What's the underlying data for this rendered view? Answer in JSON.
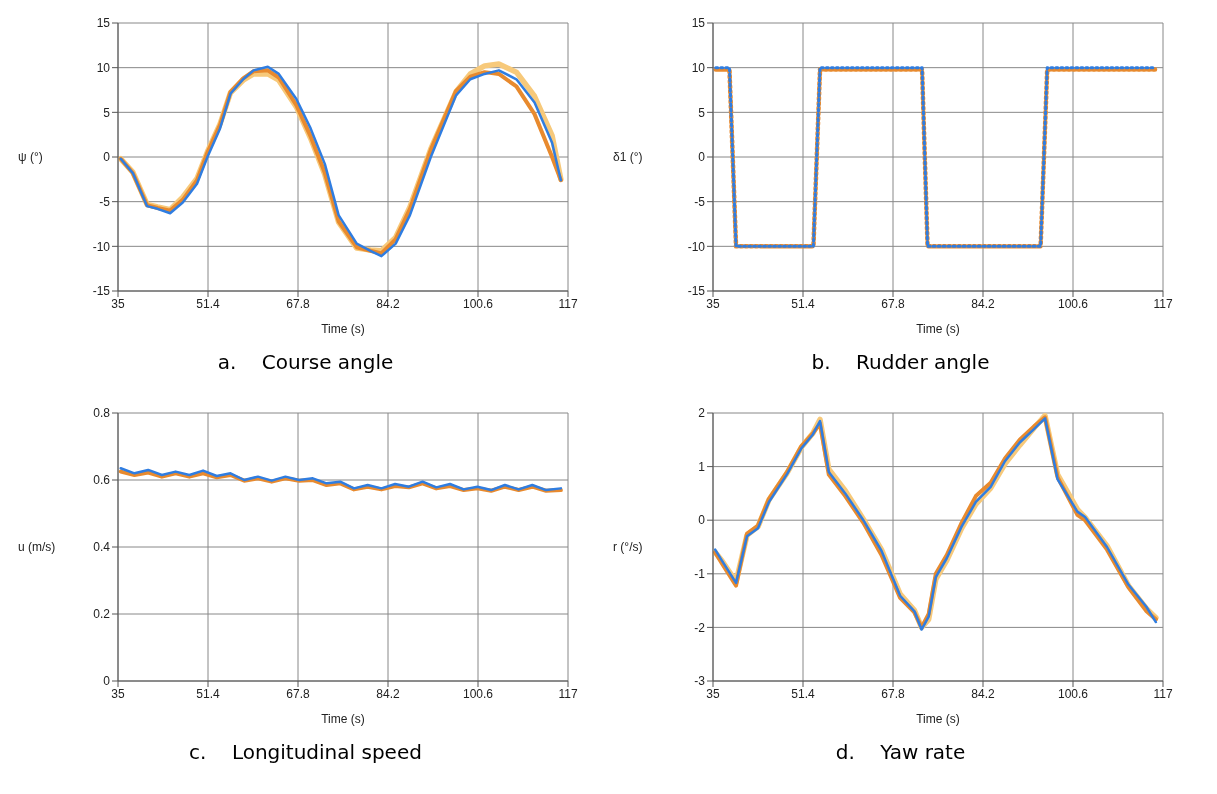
{
  "chart_data": [
    {
      "type": "line",
      "title": "a.    Course angle",
      "xlabel": "Time (s)",
      "ylabel": "ψ (°)",
      "xlim": [
        35,
        117
      ],
      "xticks": [
        35,
        51.4,
        67.8,
        84.2,
        100.6,
        117
      ],
      "ylim": [
        -15,
        15
      ],
      "yticks": [
        -15,
        -10,
        -5,
        0,
        5,
        10,
        15
      ],
      "grid": true,
      "legend": false,
      "line_style": "solid",
      "marker": "none",
      "x": [
        35.5,
        37.7,
        40.3,
        42.2,
        44.5,
        46.8,
        49.4,
        51.3,
        53.6,
        55.5,
        57.8,
        59.7,
        62.3,
        64.3,
        67.5,
        70.1,
        72.7,
        75.2,
        78.5,
        81,
        83,
        85.6,
        88.2,
        92,
        96.6,
        99.2,
        101.8,
        104.4,
        107.6,
        110.9,
        114.1,
        115.7
      ],
      "series": [
        {
          "color": "#f7c97a",
          "values": [
            -0.2,
            -1.7,
            -5.3,
            -5.6,
            -5.9,
            -4.5,
            -2.4,
            0.6,
            3.7,
            7.2,
            8.6,
            9.3,
            9.3,
            8.6,
            5.6,
            2.1,
            -2.0,
            -7.3,
            -10.2,
            -10.4,
            -10.5,
            -9.0,
            -5.6,
            0.9,
            7.3,
            9.3,
            10.2,
            10.4,
            9.5,
            6.8,
            2.4,
            -2.5
          ]
        },
        {
          "color": "#e88a2e",
          "values": [
            -0.2,
            -1.8,
            -5.4,
            -5.7,
            -6.0,
            -4.8,
            -2.6,
            0.5,
            3.6,
            7.3,
            8.8,
            9.6,
            9.7,
            8.9,
            5.8,
            2.3,
            -1.8,
            -7.2,
            -10.1,
            -10.5,
            -10.8,
            -9.2,
            -5.8,
            0.8,
            7.4,
            9.0,
            9.5,
            9.3,
            7.9,
            4.8,
            0.0,
            -2.6
          ]
        },
        {
          "color": "#2f7de1",
          "values": [
            -0.2,
            -1.8,
            -5.5,
            -5.8,
            -6.3,
            -5.1,
            -3,
            0,
            3.2,
            7.1,
            8.7,
            9.7,
            10.1,
            9.3,
            6.5,
            3.2,
            -0.8,
            -6.5,
            -9.7,
            -10.5,
            -11.1,
            -9.7,
            -6.5,
            0,
            6.9,
            8.7,
            9.3,
            9.7,
            8.7,
            6.1,
            1.6,
            -2.6
          ]
        }
      ]
    },
    {
      "type": "line",
      "title": "b.    Rudder angle",
      "xlabel": "Time (s)",
      "ylabel": "δ1 (°)",
      "xlim": [
        35,
        117
      ],
      "xticks": [
        35,
        51.4,
        67.8,
        84.2,
        100.6,
        117
      ],
      "ylim": [
        -15,
        15
      ],
      "yticks": [
        -15,
        -10,
        -5,
        0,
        5,
        10,
        15
      ],
      "grid": true,
      "legend": false,
      "line_style": "dotted",
      "marker": "none",
      "x": [
        35.5,
        38,
        39.2,
        53.3,
        54.5,
        73.1,
        74.1,
        94.7,
        95.9,
        115.7
      ],
      "series": [
        {
          "color": "#e88a2e",
          "values": [
            9.8,
            9.8,
            -10,
            -10,
            9.8,
            9.8,
            -10,
            -10,
            9.8,
            9.8
          ]
        },
        {
          "color": "#2f7de1",
          "values": [
            10,
            10,
            -10,
            -10,
            10,
            10,
            -10,
            -10,
            10,
            10
          ]
        }
      ]
    },
    {
      "type": "line",
      "title": "c.    Longitudinal speed",
      "xlabel": "Time (s)",
      "ylabel": "u (m/s)",
      "xlim": [
        35,
        117
      ],
      "xticks": [
        35,
        51.4,
        67.8,
        84.2,
        100.6,
        117
      ],
      "ylim": [
        0,
        0.8
      ],
      "yticks": [
        0,
        0.2,
        0.4,
        0.6,
        0.8
      ],
      "grid": true,
      "legend": false,
      "line_style": "solid",
      "marker": "none",
      "x": [
        35.5,
        38,
        40.5,
        43,
        45.5,
        48,
        50.5,
        53,
        55.5,
        58,
        60.5,
        63,
        65.5,
        68,
        70.5,
        73,
        75.5,
        78,
        80.5,
        83,
        85.5,
        88,
        90.5,
        93,
        95.5,
        98,
        100.5,
        103,
        105.5,
        108,
        110.5,
        113,
        115.7
      ],
      "series": [
        {
          "color": "#e88a2e",
          "values": [
            0.625,
            0.615,
            0.622,
            0.61,
            0.62,
            0.61,
            0.62,
            0.608,
            0.615,
            0.598,
            0.605,
            0.595,
            0.605,
            0.598,
            0.6,
            0.585,
            0.59,
            0.572,
            0.58,
            0.572,
            0.582,
            0.578,
            0.59,
            0.575,
            0.582,
            0.57,
            0.575,
            0.568,
            0.58,
            0.57,
            0.58,
            0.568,
            0.57
          ]
        },
        {
          "color": "#2f7de1",
          "values": [
            0.635,
            0.62,
            0.63,
            0.615,
            0.625,
            0.615,
            0.628,
            0.612,
            0.62,
            0.6,
            0.61,
            0.598,
            0.61,
            0.6,
            0.605,
            0.59,
            0.595,
            0.575,
            0.585,
            0.575,
            0.588,
            0.58,
            0.595,
            0.578,
            0.588,
            0.572,
            0.58,
            0.57,
            0.585,
            0.572,
            0.585,
            0.57,
            0.575
          ]
        }
      ]
    },
    {
      "type": "line",
      "title": "d.    Yaw rate",
      "xlabel": "Time (s)",
      "ylabel": "r (°/s)",
      "xlim": [
        35,
        117
      ],
      "xticks": [
        35,
        51.4,
        67.8,
        84.2,
        100.6,
        117
      ],
      "ylim": [
        -3,
        2
      ],
      "yticks": [
        -3,
        -2,
        -1,
        0,
        1,
        2
      ],
      "grid": true,
      "legend": false,
      "line_style": "solid",
      "marker": "none",
      "x": [
        35.4,
        36.6,
        39.2,
        41.2,
        43.2,
        45.2,
        48.5,
        51.1,
        53.2,
        54.5,
        56.1,
        59.1,
        62.4,
        65.7,
        69.1,
        71.7,
        73,
        74.3,
        75.6,
        77.6,
        80.3,
        82.9,
        85.6,
        88.2,
        90.9,
        93.5,
        95.5,
        97.8,
        101.4,
        102.8,
        106.8,
        110.7,
        114,
        115.7
      ],
      "series": [
        {
          "color": "#f7c97a",
          "values": [
            -0.6,
            -0.75,
            -1.15,
            -0.28,
            -0.12,
            0.38,
            0.88,
            1.36,
            1.62,
            1.88,
            0.95,
            0.55,
            0.02,
            -0.55,
            -1.38,
            -1.68,
            -2.0,
            -1.85,
            -1.1,
            -0.75,
            -0.15,
            0.3,
            0.6,
            1.05,
            1.4,
            1.72,
            1.95,
            0.85,
            0.2,
            0.05,
            -0.48,
            -1.22,
            -1.65,
            -1.82
          ]
        },
        {
          "color": "#e88a2e",
          "values": [
            -0.6,
            -0.8,
            -1.22,
            -0.25,
            -0.1,
            0.4,
            0.9,
            1.38,
            1.62,
            1.8,
            0.85,
            0.45,
            -0.05,
            -0.65,
            -1.45,
            -1.72,
            -2.0,
            -1.75,
            -1.0,
            -0.65,
            -0.05,
            0.45,
            0.7,
            1.15,
            1.5,
            1.75,
            1.92,
            0.8,
            0.1,
            0.0,
            -0.55,
            -1.25,
            -1.7,
            -1.85
          ]
        },
        {
          "color": "#2f7de1",
          "values": [
            -0.55,
            -0.75,
            -1.17,
            -0.3,
            -0.15,
            0.34,
            0.86,
            1.34,
            1.6,
            1.85,
            0.9,
            0.5,
            0,
            -0.57,
            -1.41,
            -1.7,
            -2.04,
            -1.8,
            -1.06,
            -0.71,
            -0.12,
            0.34,
            0.62,
            1.1,
            1.45,
            1.7,
            1.9,
            0.76,
            0.16,
            0.06,
            -0.5,
            -1.2,
            -1.62,
            -1.9
          ]
        }
      ]
    }
  ]
}
